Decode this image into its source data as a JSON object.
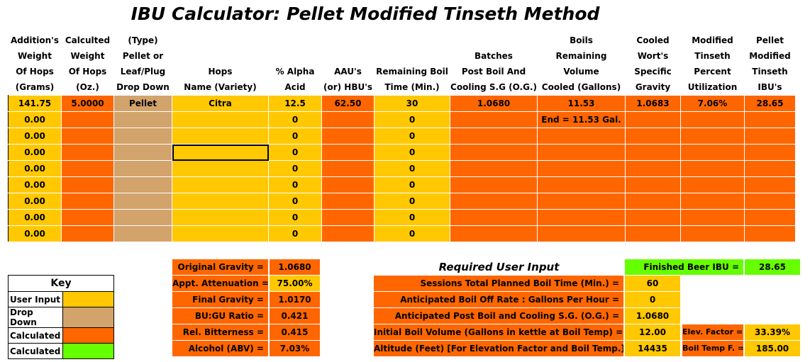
{
  "title": "IBU Calculator: Pellet Modified Tinseth Method",
  "headers": [
    [
      "Addition's",
      "Weight",
      "Of Hops",
      "(Grams)"
    ],
    [
      "Calculted",
      "Weight",
      "Of Hops",
      "(Oz.)"
    ],
    [
      "(Type)",
      "Pellet or",
      "Leaf/Plug",
      "Drop Down"
    ],
    [
      "",
      "",
      "Hops",
      "Name (Variety)"
    ],
    [
      "",
      "",
      "% Alpha",
      "Acid"
    ],
    [
      "",
      "",
      "AAU's",
      "(or) HBU's"
    ],
    [
      "",
      "",
      "Remaining Boil",
      "Time (Min.)"
    ],
    [
      "",
      "Batches",
      "Post Boil And",
      "Cooling S.G (O.G.)"
    ],
    [
      "Boils",
      "Remaining",
      "Volume",
      "Cooled (Gallons)"
    ],
    [
      "Cooled",
      "Wort's",
      "Specific",
      "Gravity"
    ],
    [
      "Modified",
      "Tinseth",
      "Percent",
      "Utilization"
    ],
    [
      "Pellet",
      "Modified",
      "Tinseth",
      "IBU's"
    ]
  ],
  "rows": [
    [
      "141.75",
      "5.0000",
      "Pellet",
      "Citra",
      "12.5",
      "62.50",
      "30",
      "1.0680",
      "11.53",
      "1.0683",
      "7.06%",
      "28.65"
    ],
    [
      "0.00",
      "",
      "",
      "",
      "0",
      "",
      "0",
      "",
      "End = 11.53 Gal.",
      "",
      "",
      ""
    ],
    [
      "0.00",
      "",
      "",
      "",
      "0",
      "",
      "0",
      "",
      "",
      "",
      "",
      ""
    ],
    [
      "0.00",
      "",
      "",
      "",
      "0",
      "",
      "0",
      "",
      "",
      "",
      "",
      ""
    ],
    [
      "0.00",
      "",
      "",
      "",
      "0",
      "",
      "0",
      "",
      "",
      "",
      "",
      ""
    ],
    [
      "0.00",
      "",
      "",
      "",
      "0",
      "",
      "0",
      "",
      "",
      "",
      "",
      ""
    ],
    [
      "0.00",
      "",
      "",
      "",
      "0",
      "",
      "0",
      "",
      "",
      "",
      "",
      ""
    ],
    [
      "0.00",
      "",
      "",
      "",
      "0",
      "",
      "0",
      "",
      "",
      "",
      "",
      ""
    ],
    [
      "0.00",
      "",
      "",
      "",
      "0",
      "",
      "0",
      "",
      "",
      "",
      "",
      ""
    ]
  ],
  "summary": [
    {
      "label": "Original Gravity =",
      "value": "1.0680"
    },
    {
      "label": "Appt. Attenuation =",
      "value": "75.00%"
    },
    {
      "label": "Final Gravity =",
      "value": "1.0170"
    },
    {
      "label": "BU:GU Ratio =",
      "value": "0.421"
    },
    {
      "label": "Rel. Bitterness =",
      "value": "0.415"
    },
    {
      "label": "Alcohol (ABV) =",
      "value": "7.03%"
    }
  ],
  "required_title": "Required User Input",
  "inputs": [
    {
      "label": "Sessions Total Planned Boil Time (Min.) =",
      "value": "60"
    },
    {
      "label": "Anticipated Boil Off Rate : Gallons Per Hour =",
      "value": "0"
    },
    {
      "label": "Anticipated Post Boil and Cooling S.G. (O.G.) =",
      "value": "1.0680"
    },
    {
      "label": "Initial Boil Volume (Gallons in kettle at Boil Temp) =",
      "value": "12.00"
    },
    {
      "label": "Altitude (Feet) [For Elevation Factor and Boil Temp.] =",
      "value": "14435"
    }
  ],
  "finished": {
    "label": "Finished Beer IBU =",
    "value": "28.65"
  },
  "elev": {
    "label": "Elev. Factor =",
    "value": "33.39%"
  },
  "boiltemp": {
    "label": "Boil Temp F. =",
    "value": "185.00"
  },
  "key": {
    "title": "Key",
    "items": [
      {
        "label": "User Input",
        "color": "#ffc800"
      },
      {
        "label": "Drop Down",
        "color": "#d2a36b"
      },
      {
        "label": "Calculated",
        "color": "#ff6600"
      },
      {
        "label": "Calculated",
        "color": "#66ff00"
      }
    ]
  },
  "colors": {
    "user_input": "#ffc800",
    "drop_down": "#d2a36b",
    "calculated": "#ff6600",
    "calculated_green": "#66ff00"
  }
}
